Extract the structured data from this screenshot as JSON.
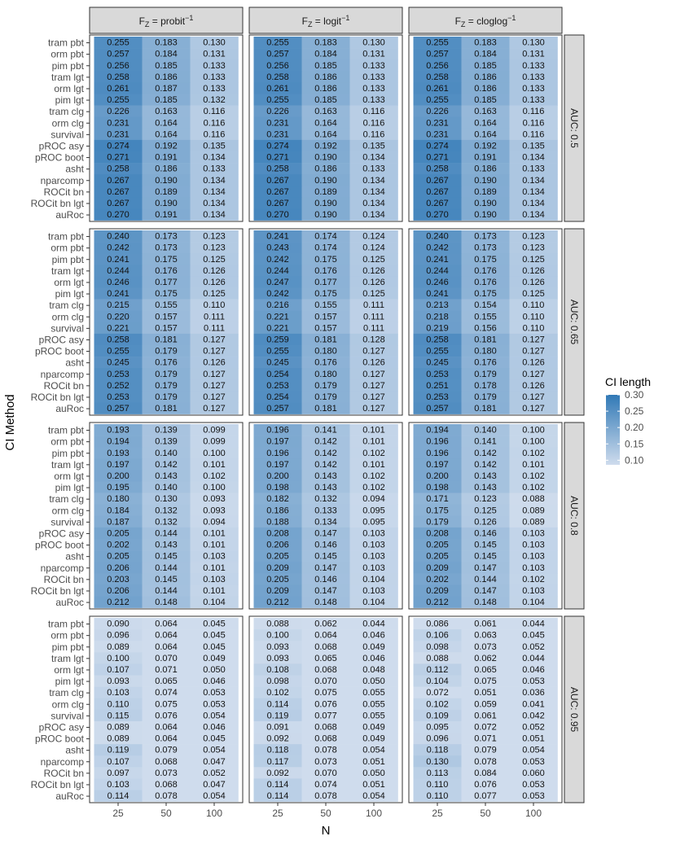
{
  "chart_data": {
    "type": "heatmap",
    "xlabel": "N",
    "ylabel": "CI Method",
    "x_categories": [
      "25",
      "50",
      "100"
    ],
    "methods": [
      "tram pbt",
      "orm pbt",
      "pim pbt",
      "tram lgt",
      "orm lgt",
      "pim lgt",
      "tram clg",
      "orm clg",
      "survival",
      "pROC asy",
      "pROC boot",
      "asht",
      "nparcomp",
      "ROCit bn",
      "ROCit bn lgt",
      "auRoc"
    ],
    "columns": [
      {
        "prefix": "F",
        "sub": "Z",
        "eq": " = ",
        "func": "probit",
        "sup": "−1"
      },
      {
        "prefix": "F",
        "sub": "Z",
        "eq": " = ",
        "func": "logit",
        "sup": "−1"
      },
      {
        "prefix": "F",
        "sub": "Z",
        "eq": " = ",
        "func": "cloglog",
        "sup": "−1"
      }
    ],
    "rows": [
      "AUC: 0.5",
      "AUC: 0.65",
      "AUC: 0.8",
      "AUC: 0.95"
    ],
    "legend": {
      "title": "CI length",
      "ticks": [
        "0.30",
        "0.25",
        "0.20",
        "0.15",
        "0.10"
      ],
      "tick_values": [
        0.3,
        0.25,
        0.2,
        0.15,
        0.1
      ],
      "min": 0.086,
      "max": 0.3
    },
    "colors": {
      "low": "#cfdced",
      "high": "#3179b6",
      "strip": "#d9d9d9"
    },
    "values": [
      [
        [
          [
            "0.255",
            "0.183",
            "0.130"
          ],
          [
            "0.257",
            "0.184",
            "0.131"
          ],
          [
            "0.256",
            "0.185",
            "0.133"
          ],
          [
            "0.258",
            "0.186",
            "0.133"
          ],
          [
            "0.261",
            "0.187",
            "0.133"
          ],
          [
            "0.255",
            "0.185",
            "0.132"
          ],
          [
            "0.226",
            "0.163",
            "0.116"
          ],
          [
            "0.231",
            "0.164",
            "0.116"
          ],
          [
            "0.231",
            "0.164",
            "0.116"
          ],
          [
            "0.274",
            "0.192",
            "0.135"
          ],
          [
            "0.271",
            "0.191",
            "0.134"
          ],
          [
            "0.258",
            "0.186",
            "0.133"
          ],
          [
            "0.267",
            "0.190",
            "0.134"
          ],
          [
            "0.267",
            "0.189",
            "0.134"
          ],
          [
            "0.267",
            "0.190",
            "0.134"
          ],
          [
            "0.270",
            "0.191",
            "0.134"
          ]
        ],
        [
          [
            "0.255",
            "0.183",
            "0.130"
          ],
          [
            "0.257",
            "0.184",
            "0.131"
          ],
          [
            "0.256",
            "0.185",
            "0.133"
          ],
          [
            "0.258",
            "0.186",
            "0.133"
          ],
          [
            "0.261",
            "0.186",
            "0.133"
          ],
          [
            "0.255",
            "0.185",
            "0.133"
          ],
          [
            "0.226",
            "0.163",
            "0.116"
          ],
          [
            "0.231",
            "0.164",
            "0.116"
          ],
          [
            "0.231",
            "0.164",
            "0.116"
          ],
          [
            "0.274",
            "0.192",
            "0.135"
          ],
          [
            "0.271",
            "0.190",
            "0.134"
          ],
          [
            "0.258",
            "0.186",
            "0.133"
          ],
          [
            "0.267",
            "0.190",
            "0.134"
          ],
          [
            "0.267",
            "0.189",
            "0.134"
          ],
          [
            "0.267",
            "0.190",
            "0.134"
          ],
          [
            "0.270",
            "0.190",
            "0.134"
          ]
        ],
        [
          [
            "0.255",
            "0.183",
            "0.130"
          ],
          [
            "0.257",
            "0.184",
            "0.131"
          ],
          [
            "0.256",
            "0.185",
            "0.133"
          ],
          [
            "0.258",
            "0.186",
            "0.133"
          ],
          [
            "0.261",
            "0.186",
            "0.133"
          ],
          [
            "0.255",
            "0.185",
            "0.133"
          ],
          [
            "0.226",
            "0.163",
            "0.116"
          ],
          [
            "0.231",
            "0.164",
            "0.116"
          ],
          [
            "0.231",
            "0.164",
            "0.116"
          ],
          [
            "0.274",
            "0.192",
            "0.135"
          ],
          [
            "0.271",
            "0.191",
            "0.134"
          ],
          [
            "0.258",
            "0.186",
            "0.133"
          ],
          [
            "0.267",
            "0.190",
            "0.134"
          ],
          [
            "0.267",
            "0.189",
            "0.134"
          ],
          [
            "0.267",
            "0.190",
            "0.134"
          ],
          [
            "0.270",
            "0.190",
            "0.134"
          ]
        ]
      ],
      [
        [
          [
            "0.240",
            "0.173",
            "0.123"
          ],
          [
            "0.242",
            "0.173",
            "0.123"
          ],
          [
            "0.241",
            "0.175",
            "0.125"
          ],
          [
            "0.244",
            "0.176",
            "0.126"
          ],
          [
            "0.246",
            "0.177",
            "0.126"
          ],
          [
            "0.241",
            "0.175",
            "0.125"
          ],
          [
            "0.215",
            "0.155",
            "0.110"
          ],
          [
            "0.220",
            "0.157",
            "0.111"
          ],
          [
            "0.221",
            "0.157",
            "0.111"
          ],
          [
            "0.258",
            "0.181",
            "0.127"
          ],
          [
            "0.255",
            "0.179",
            "0.127"
          ],
          [
            "0.245",
            "0.176",
            "0.126"
          ],
          [
            "0.253",
            "0.179",
            "0.127"
          ],
          [
            "0.252",
            "0.179",
            "0.127"
          ],
          [
            "0.253",
            "0.179",
            "0.127"
          ],
          [
            "0.257",
            "0.181",
            "0.127"
          ]
        ],
        [
          [
            "0.241",
            "0.174",
            "0.124"
          ],
          [
            "0.243",
            "0.174",
            "0.124"
          ],
          [
            "0.242",
            "0.175",
            "0.125"
          ],
          [
            "0.244",
            "0.176",
            "0.126"
          ],
          [
            "0.247",
            "0.177",
            "0.126"
          ],
          [
            "0.242",
            "0.175",
            "0.125"
          ],
          [
            "0.216",
            "0.155",
            "0.111"
          ],
          [
            "0.221",
            "0.157",
            "0.111"
          ],
          [
            "0.221",
            "0.157",
            "0.111"
          ],
          [
            "0.259",
            "0.181",
            "0.128"
          ],
          [
            "0.255",
            "0.180",
            "0.127"
          ],
          [
            "0.245",
            "0.176",
            "0.126"
          ],
          [
            "0.254",
            "0.180",
            "0.127"
          ],
          [
            "0.253",
            "0.179",
            "0.127"
          ],
          [
            "0.254",
            "0.179",
            "0.127"
          ],
          [
            "0.257",
            "0.181",
            "0.127"
          ]
        ],
        [
          [
            "0.240",
            "0.173",
            "0.123"
          ],
          [
            "0.242",
            "0.173",
            "0.123"
          ],
          [
            "0.241",
            "0.175",
            "0.125"
          ],
          [
            "0.244",
            "0.176",
            "0.126"
          ],
          [
            "0.246",
            "0.176",
            "0.126"
          ],
          [
            "0.241",
            "0.175",
            "0.125"
          ],
          [
            "0.213",
            "0.154",
            "0.110"
          ],
          [
            "0.218",
            "0.155",
            "0.110"
          ],
          [
            "0.219",
            "0.156",
            "0.110"
          ],
          [
            "0.258",
            "0.181",
            "0.127"
          ],
          [
            "0.255",
            "0.180",
            "0.127"
          ],
          [
            "0.245",
            "0.176",
            "0.126"
          ],
          [
            "0.253",
            "0.179",
            "0.127"
          ],
          [
            "0.251",
            "0.178",
            "0.126"
          ],
          [
            "0.253",
            "0.179",
            "0.127"
          ],
          [
            "0.257",
            "0.181",
            "0.127"
          ]
        ]
      ],
      [
        [
          [
            "0.193",
            "0.139",
            "0.099"
          ],
          [
            "0.194",
            "0.139",
            "0.099"
          ],
          [
            "0.193",
            "0.140",
            "0.100"
          ],
          [
            "0.197",
            "0.142",
            "0.101"
          ],
          [
            "0.200",
            "0.143",
            "0.102"
          ],
          [
            "0.195",
            "0.140",
            "0.100"
          ],
          [
            "0.180",
            "0.130",
            "0.093"
          ],
          [
            "0.184",
            "0.132",
            "0.093"
          ],
          [
            "0.187",
            "0.132",
            "0.094"
          ],
          [
            "0.205",
            "0.144",
            "0.101"
          ],
          [
            "0.202",
            "0.143",
            "0.101"
          ],
          [
            "0.205",
            "0.145",
            "0.103"
          ],
          [
            "0.206",
            "0.144",
            "0.101"
          ],
          [
            "0.203",
            "0.145",
            "0.103"
          ],
          [
            "0.206",
            "0.144",
            "0.101"
          ],
          [
            "0.212",
            "0.148",
            "0.104"
          ]
        ],
        [
          [
            "0.196",
            "0.141",
            "0.101"
          ],
          [
            "0.197",
            "0.142",
            "0.101"
          ],
          [
            "0.196",
            "0.142",
            "0.102"
          ],
          [
            "0.197",
            "0.142",
            "0.101"
          ],
          [
            "0.200",
            "0.143",
            "0.102"
          ],
          [
            "0.198",
            "0.143",
            "0.102"
          ],
          [
            "0.182",
            "0.132",
            "0.094"
          ],
          [
            "0.186",
            "0.133",
            "0.095"
          ],
          [
            "0.188",
            "0.134",
            "0.095"
          ],
          [
            "0.208",
            "0.147",
            "0.103"
          ],
          [
            "0.206",
            "0.146",
            "0.103"
          ],
          [
            "0.205",
            "0.145",
            "0.103"
          ],
          [
            "0.209",
            "0.147",
            "0.103"
          ],
          [
            "0.205",
            "0.146",
            "0.104"
          ],
          [
            "0.209",
            "0.147",
            "0.103"
          ],
          [
            "0.212",
            "0.148",
            "0.104"
          ]
        ],
        [
          [
            "0.194",
            "0.140",
            "0.100"
          ],
          [
            "0.196",
            "0.141",
            "0.100"
          ],
          [
            "0.196",
            "0.142",
            "0.102"
          ],
          [
            "0.197",
            "0.142",
            "0.101"
          ],
          [
            "0.200",
            "0.143",
            "0.102"
          ],
          [
            "0.198",
            "0.143",
            "0.102"
          ],
          [
            "0.171",
            "0.123",
            "0.088"
          ],
          [
            "0.175",
            "0.125",
            "0.089"
          ],
          [
            "0.179",
            "0.126",
            "0.089"
          ],
          [
            "0.208",
            "0.146",
            "0.103"
          ],
          [
            "0.205",
            "0.145",
            "0.103"
          ],
          [
            "0.205",
            "0.145",
            "0.103"
          ],
          [
            "0.209",
            "0.147",
            "0.103"
          ],
          [
            "0.202",
            "0.144",
            "0.102"
          ],
          [
            "0.209",
            "0.147",
            "0.103"
          ],
          [
            "0.212",
            "0.148",
            "0.104"
          ]
        ]
      ],
      [
        [
          [
            "0.090",
            "0.064",
            "0.045"
          ],
          [
            "0.096",
            "0.064",
            "0.045"
          ],
          [
            "0.089",
            "0.064",
            "0.045"
          ],
          [
            "0.100",
            "0.070",
            "0.049"
          ],
          [
            "0.107",
            "0.071",
            "0.050"
          ],
          [
            "0.093",
            "0.065",
            "0.046"
          ],
          [
            "0.103",
            "0.074",
            "0.053"
          ],
          [
            "0.110",
            "0.075",
            "0.053"
          ],
          [
            "0.115",
            "0.076",
            "0.054"
          ],
          [
            "0.089",
            "0.064",
            "0.046"
          ],
          [
            "0.089",
            "0.064",
            "0.045"
          ],
          [
            "0.119",
            "0.079",
            "0.054"
          ],
          [
            "0.107",
            "0.068",
            "0.047"
          ],
          [
            "0.097",
            "0.073",
            "0.052"
          ],
          [
            "0.103",
            "0.068",
            "0.047"
          ],
          [
            "0.114",
            "0.078",
            "0.054"
          ]
        ],
        [
          [
            "0.088",
            "0.062",
            "0.044"
          ],
          [
            "0.100",
            "0.064",
            "0.046"
          ],
          [
            "0.093",
            "0.068",
            "0.049"
          ],
          [
            "0.093",
            "0.065",
            "0.046"
          ],
          [
            "0.108",
            "0.068",
            "0.048"
          ],
          [
            "0.098",
            "0.070",
            "0.050"
          ],
          [
            "0.102",
            "0.075",
            "0.055"
          ],
          [
            "0.114",
            "0.076",
            "0.055"
          ],
          [
            "0.119",
            "0.077",
            "0.055"
          ],
          [
            "0.091",
            "0.068",
            "0.049"
          ],
          [
            "0.092",
            "0.068",
            "0.049"
          ],
          [
            "0.118",
            "0.078",
            "0.054"
          ],
          [
            "0.117",
            "0.073",
            "0.051"
          ],
          [
            "0.092",
            "0.070",
            "0.050"
          ],
          [
            "0.114",
            "0.074",
            "0.051"
          ],
          [
            "0.114",
            "0.078",
            "0.054"
          ]
        ],
        [
          [
            "0.086",
            "0.061",
            "0.044"
          ],
          [
            "0.106",
            "0.063",
            "0.045"
          ],
          [
            "0.098",
            "0.073",
            "0.052"
          ],
          [
            "0.088",
            "0.062",
            "0.044"
          ],
          [
            "0.112",
            "0.065",
            "0.046"
          ],
          [
            "0.104",
            "0.075",
            "0.053"
          ],
          [
            "0.072",
            "0.051",
            "0.036"
          ],
          [
            "0.102",
            "0.059",
            "0.041"
          ],
          [
            "0.109",
            "0.061",
            "0.042"
          ],
          [
            "0.095",
            "0.072",
            "0.052"
          ],
          [
            "0.096",
            "0.071",
            "0.051"
          ],
          [
            "0.118",
            "0.079",
            "0.054"
          ],
          [
            "0.130",
            "0.078",
            "0.053"
          ],
          [
            "0.113",
            "0.084",
            "0.060"
          ],
          [
            "0.110",
            "0.076",
            "0.053"
          ],
          [
            "0.110",
            "0.077",
            "0.053"
          ]
        ]
      ]
    ]
  }
}
